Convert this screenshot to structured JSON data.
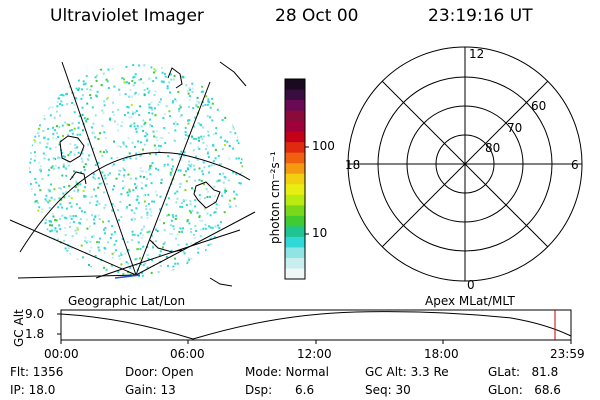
{
  "header": {
    "instrument": "Ultraviolet Imager",
    "date": "28 Oct 00",
    "time": "23:19:16 UT"
  },
  "left_panel": {
    "label": "Geographic Lat/Lon"
  },
  "right_panel": {
    "label": "Apex MLat/MLT",
    "mlt_labels": [
      "12",
      "18",
      "6",
      "0"
    ],
    "lat_labels": [
      "60",
      "70",
      "80"
    ]
  },
  "colorbar": {
    "unit_label": "photon cm⁻²s⁻¹",
    "tick_labels": [
      "100",
      "10"
    ],
    "colors": [
      "#1a0a1f",
      "#3a0d40",
      "#6a0a55",
      "#8a0a3a",
      "#a0003a",
      "#c40018",
      "#e02a10",
      "#f06010",
      "#f59a10",
      "#f2cf10",
      "#e8ef10",
      "#b8ec10",
      "#7ad81a",
      "#40cc30",
      "#20c490",
      "#30d8d8",
      "#90e4e4",
      "#c8eef0",
      "#eef6f8"
    ]
  },
  "timeline": {
    "ylabel": "GC Alt",
    "y_ticks": [
      "9.0",
      "1.8"
    ],
    "x_ticks": [
      "00:00",
      "06:00",
      "12:00",
      "18:00",
      "23:59"
    ],
    "marker_color": "#cc0000"
  },
  "info": {
    "flt": "Flt: 1356",
    "ip": "IP: 18.0",
    "door": "Door: Open",
    "gain": "Gain: 13",
    "mode": "Mode: Normal",
    "dsp": "Dsp:      6.6",
    "gcalt": "GC Alt: 3.3 Re",
    "seq": "Seq: 30",
    "glat": "GLat:   81.8",
    "glon": "GLon:   68.6"
  }
}
